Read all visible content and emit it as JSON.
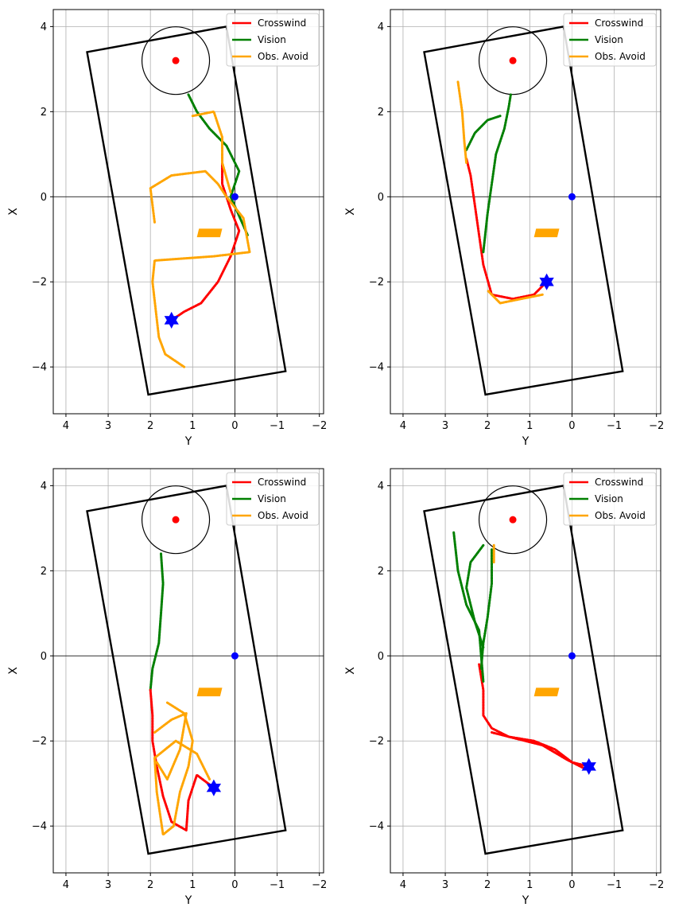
{
  "legend": {
    "placement": "top-right",
    "entries": [
      {
        "label": "Crosswind",
        "color": "#ff0000"
      },
      {
        "label": "Vision",
        "color": "#008000"
      },
      {
        "label": "Obs. Avoid",
        "color": "#ffa500"
      }
    ]
  },
  "chart_data": [
    {
      "type": "line",
      "xlabel": "Y",
      "ylabel": "X",
      "xlim": [
        4.3,
        -2.1
      ],
      "ylim": [
        -5.1,
        4.4
      ],
      "xticks": [
        "4",
        "3",
        "2",
        "1",
        "0",
        "−1",
        "−2"
      ],
      "yticks": [
        "4",
        "2",
        "0",
        "−2",
        "−4"
      ],
      "grid": true,
      "boundary": [
        [
          3.5,
          3.4
        ],
        [
          0.2,
          4.0
        ],
        [
          -1.2,
          -4.1
        ],
        [
          2.05,
          -4.65
        ]
      ],
      "circle": {
        "center": [
          1.4,
          3.2
        ],
        "radius": 0.8
      },
      "goal_point": [
        1.4,
        3.2
      ],
      "origin_point": [
        0,
        0
      ],
      "obstacle": [
        [
          0.85,
          -0.75
        ],
        [
          0.3,
          -0.75
        ],
        [
          0.35,
          -0.95
        ],
        [
          0.9,
          -0.95
        ]
      ],
      "start_marker": [
        1.5,
        -2.9
      ],
      "series": [
        {
          "name": "Crosswind",
          "color": "#ff0000",
          "points": [
            [
              1.5,
              -2.9
            ],
            [
              1.2,
              -2.7
            ],
            [
              0.8,
              -2.5
            ],
            [
              0.4,
              -2.0
            ],
            [
              0.1,
              -1.4
            ],
            [
              -0.1,
              -0.8
            ],
            [
              0.1,
              -0.3
            ],
            [
              0.3,
              0.3
            ],
            [
              0.3,
              1.0
            ]
          ]
        },
        {
          "name": "Vision",
          "color": "#008000",
          "points": [
            [
              1.1,
              2.4
            ],
            [
              0.9,
              2.0
            ],
            [
              0.6,
              1.6
            ],
            [
              0.2,
              1.2
            ],
            [
              -0.1,
              0.6
            ],
            [
              0.1,
              0.0
            ],
            [
              -0.3,
              -0.9
            ]
          ]
        },
        {
          "name": "Obs. Avoid",
          "color": "#ffa500",
          "points": [
            [
              1.9,
              -0.6
            ],
            [
              2.0,
              0.2
            ],
            [
              1.5,
              0.5
            ],
            [
              0.7,
              0.6
            ],
            [
              0.4,
              0.3
            ],
            [
              0.2,
              0.0
            ],
            [
              -0.2,
              -0.5
            ],
            [
              -0.35,
              -1.3
            ],
            [
              0.5,
              -1.4
            ],
            [
              1.9,
              -1.5
            ],
            [
              1.95,
              -2.0
            ],
            [
              1.8,
              -3.3
            ],
            [
              1.65,
              -3.7
            ],
            [
              1.2,
              -4.0
            ]
          ]
        },
        {
          "name": "Obs. Avoid",
          "color": "#ffa500",
          "points": [
            [
              1.0,
              1.9
            ],
            [
              0.5,
              2.0
            ],
            [
              0.3,
              1.4
            ],
            [
              0.3,
              0.8
            ],
            [
              0.1,
              0.1
            ]
          ]
        }
      ]
    },
    {
      "type": "line",
      "xlabel": "Y",
      "ylabel": "X",
      "xlim": [
        4.3,
        -2.1
      ],
      "ylim": [
        -5.1,
        4.4
      ],
      "xticks": [
        "4",
        "3",
        "2",
        "1",
        "0",
        "−1",
        "−2"
      ],
      "yticks": [
        "4",
        "2",
        "0",
        "−2",
        "−4"
      ],
      "grid": true,
      "boundary": [
        [
          3.5,
          3.4
        ],
        [
          0.2,
          4.0
        ],
        [
          -1.2,
          -4.1
        ],
        [
          2.05,
          -4.65
        ]
      ],
      "circle": {
        "center": [
          1.4,
          3.2
        ],
        "radius": 0.8
      },
      "goal_point": [
        1.4,
        3.2
      ],
      "origin_point": [
        0,
        0
      ],
      "obstacle": [
        [
          0.85,
          -0.75
        ],
        [
          0.3,
          -0.75
        ],
        [
          0.35,
          -0.95
        ],
        [
          0.9,
          -0.95
        ]
      ],
      "start_marker": [
        0.6,
        -2.0
      ],
      "series": [
        {
          "name": "Crosswind",
          "color": "#ff0000",
          "points": [
            [
              0.6,
              -2.0
            ],
            [
              0.9,
              -2.3
            ],
            [
              1.4,
              -2.4
            ],
            [
              1.9,
              -2.3
            ],
            [
              2.1,
              -1.6
            ],
            [
              2.2,
              -0.9
            ],
            [
              2.3,
              -0.2
            ],
            [
              2.4,
              0.5
            ],
            [
              2.5,
              0.9
            ]
          ]
        },
        {
          "name": "Vision",
          "color": "#008000",
          "points": [
            [
              2.1,
              -1.3
            ],
            [
              2.0,
              -0.4
            ],
            [
              1.9,
              0.3
            ],
            [
              1.8,
              1.0
            ],
            [
              1.6,
              1.6
            ],
            [
              1.5,
              2.1
            ],
            [
              1.45,
              2.4
            ]
          ]
        },
        {
          "name": "Vision",
          "color": "#008000",
          "points": [
            [
              2.5,
              1.1
            ],
            [
              2.3,
              1.5
            ],
            [
              2.0,
              1.8
            ],
            [
              1.7,
              1.9
            ]
          ]
        },
        {
          "name": "Obs. Avoid",
          "color": "#ffa500",
          "points": [
            [
              2.7,
              2.7
            ],
            [
              2.6,
              2.0
            ],
            [
              2.55,
              1.3
            ],
            [
              2.5,
              0.8
            ]
          ]
        },
        {
          "name": "Obs. Avoid",
          "color": "#ffa500",
          "points": [
            [
              0.7,
              -2.3
            ],
            [
              1.2,
              -2.4
            ],
            [
              1.7,
              -2.5
            ],
            [
              2.0,
              -2.2
            ]
          ]
        }
      ]
    },
    {
      "type": "line",
      "xlabel": "Y",
      "ylabel": "X",
      "xlim": [
        4.3,
        -2.1
      ],
      "ylim": [
        -5.1,
        4.4
      ],
      "xticks": [
        "4",
        "3",
        "2",
        "1",
        "0",
        "−1",
        "−2"
      ],
      "yticks": [
        "4",
        "2",
        "0",
        "−2",
        "−4"
      ],
      "grid": true,
      "boundary": [
        [
          3.5,
          3.4
        ],
        [
          0.2,
          4.0
        ],
        [
          -1.2,
          -4.1
        ],
        [
          2.05,
          -4.65
        ]
      ],
      "circle": {
        "center": [
          1.4,
          3.2
        ],
        "radius": 0.8
      },
      "goal_point": [
        1.4,
        3.2
      ],
      "origin_point": [
        0,
        0
      ],
      "obstacle": [
        [
          0.85,
          -0.75
        ],
        [
          0.3,
          -0.75
        ],
        [
          0.35,
          -0.95
        ],
        [
          0.9,
          -0.95
        ]
      ],
      "start_marker": [
        0.5,
        -3.1
      ],
      "series": [
        {
          "name": "Vision",
          "color": "#008000",
          "points": [
            [
              1.75,
              2.4
            ],
            [
              1.7,
              1.7
            ],
            [
              1.75,
              1.0
            ],
            [
              1.8,
              0.3
            ],
            [
              1.95,
              -0.3
            ],
            [
              2.0,
              -0.8
            ]
          ]
        },
        {
          "name": "Crosswind",
          "color": "#ff0000",
          "points": [
            [
              2.0,
              -0.8
            ],
            [
              1.95,
              -1.4
            ],
            [
              1.95,
              -2.0
            ],
            [
              1.85,
              -2.6
            ],
            [
              1.7,
              -3.3
            ],
            [
              1.5,
              -3.9
            ],
            [
              1.15,
              -4.1
            ],
            [
              1.1,
              -3.4
            ],
            [
              0.9,
              -2.8
            ],
            [
              0.5,
              -3.1
            ]
          ]
        },
        {
          "name": "Obs. Avoid",
          "color": "#ffa500",
          "points": [
            [
              1.6,
              -1.1
            ],
            [
              1.2,
              -1.35
            ],
            [
              1.0,
              -2.0
            ],
            [
              1.1,
              -2.6
            ],
            [
              1.3,
              -3.2
            ],
            [
              1.45,
              -4.0
            ],
            [
              1.7,
              -4.2
            ],
            [
              1.85,
              -3.2
            ],
            [
              1.9,
              -2.4
            ],
            [
              1.4,
              -2.0
            ],
            [
              0.9,
              -2.3
            ],
            [
              0.6,
              -2.9
            ]
          ]
        },
        {
          "name": "Obs. Avoid",
          "color": "#ffa500",
          "points": [
            [
              1.9,
              -1.8
            ],
            [
              1.5,
              -1.5
            ],
            [
              1.15,
              -1.35
            ],
            [
              1.3,
              -2.2
            ],
            [
              1.6,
              -2.9
            ],
            [
              1.85,
              -2.5
            ]
          ]
        }
      ]
    },
    {
      "type": "line",
      "xlabel": "Y",
      "ylabel": "X",
      "xlim": [
        4.3,
        -2.1
      ],
      "ylim": [
        -5.1,
        4.4
      ],
      "xticks": [
        "4",
        "3",
        "2",
        "1",
        "0",
        "−1",
        "−2"
      ],
      "yticks": [
        "4",
        "2",
        "0",
        "−2",
        "−4"
      ],
      "grid": true,
      "boundary": [
        [
          3.5,
          3.4
        ],
        [
          0.2,
          4.0
        ],
        [
          -1.2,
          -4.1
        ],
        [
          2.05,
          -4.65
        ]
      ],
      "circle": {
        "center": [
          1.4,
          3.2
        ],
        "radius": 0.8
      },
      "goal_point": [
        1.4,
        3.2
      ],
      "origin_point": [
        0,
        0
      ],
      "obstacle": [
        [
          0.85,
          -0.75
        ],
        [
          0.3,
          -0.75
        ],
        [
          0.35,
          -0.95
        ],
        [
          0.9,
          -0.95
        ]
      ],
      "start_marker": [
        -0.4,
        -2.6
      ],
      "series": [
        {
          "name": "Crosswind",
          "color": "#ff0000",
          "points": [
            [
              -0.4,
              -2.6
            ],
            [
              0.0,
              -2.5
            ],
            [
              0.4,
              -2.2
            ],
            [
              0.9,
              -2.0
            ],
            [
              1.5,
              -1.9
            ],
            [
              1.9,
              -1.7
            ],
            [
              2.1,
              -1.4
            ],
            [
              2.1,
              -0.8
            ],
            [
              2.2,
              -0.2
            ]
          ]
        },
        {
          "name": "Crosswind",
          "color": "#ff0000",
          "points": [
            [
              -0.3,
              -2.65
            ],
            [
              0.1,
              -2.45
            ],
            [
              0.7,
              -2.1
            ],
            [
              1.3,
              -1.95
            ],
            [
              1.9,
              -1.8
            ]
          ]
        },
        {
          "name": "Vision",
          "color": "#008000",
          "points": [
            [
              2.8,
              2.9
            ],
            [
              2.7,
              2.0
            ],
            [
              2.5,
              1.2
            ],
            [
              2.2,
              0.6
            ],
            [
              2.15,
              0.0
            ],
            [
              2.1,
              -0.6
            ]
          ]
        },
        {
          "name": "Vision",
          "color": "#008000",
          "points": [
            [
              2.1,
              2.6
            ],
            [
              2.4,
              2.2
            ],
            [
              2.5,
              1.6
            ],
            [
              2.3,
              0.8
            ],
            [
              2.1,
              0.2
            ]
          ]
        },
        {
          "name": "Vision",
          "color": "#008000",
          "points": [
            [
              1.9,
              2.5
            ],
            [
              1.9,
              1.7
            ],
            [
              2.0,
              0.9
            ],
            [
              2.1,
              0.3
            ],
            [
              2.15,
              -0.3
            ]
          ]
        },
        {
          "name": "Obs. Avoid",
          "color": "#ffa500",
          "points": [
            [
              1.85,
              2.6
            ],
            [
              1.85,
              2.2
            ]
          ]
        }
      ]
    }
  ]
}
